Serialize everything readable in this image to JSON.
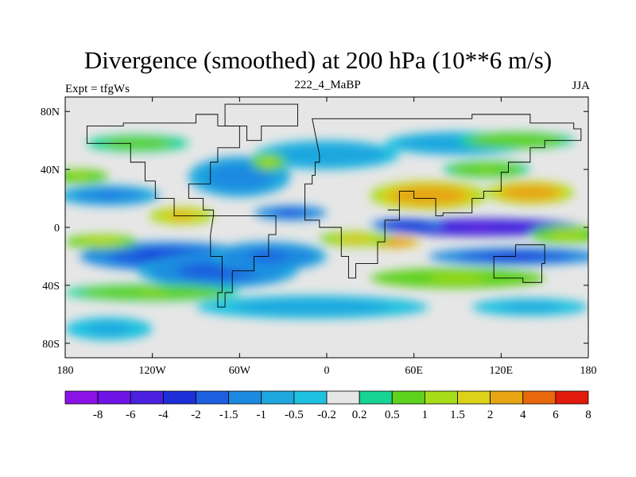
{
  "chart_data": {
    "type": "heatmap",
    "title": "Divergence (smoothed) at 200 hPa (10**6 m/s)",
    "left_label": "Expt = tfgWs",
    "center_label": "222_4_MaBP",
    "right_label": "JJA",
    "x_ticks": [
      {
        "value": -180,
        "label": "180"
      },
      {
        "value": -120,
        "label": "120W"
      },
      {
        "value": -60,
        "label": "60W"
      },
      {
        "value": 0,
        "label": "0"
      },
      {
        "value": 60,
        "label": "60E"
      },
      {
        "value": 120,
        "label": "120E"
      },
      {
        "value": 180,
        "label": "180"
      }
    ],
    "y_ticks": [
      {
        "value": 80,
        "label": "80N"
      },
      {
        "value": 40,
        "label": "40N"
      },
      {
        "value": 0,
        "label": "0"
      },
      {
        "value": -40,
        "label": "40S"
      },
      {
        "value": -80,
        "label": "80S"
      }
    ],
    "xlim": [
      -180,
      180
    ],
    "ylim": [
      -90,
      90
    ],
    "legend_labels": [
      "-8",
      "-6",
      "-4",
      "-2",
      "-1.5",
      "-1",
      "-0.5",
      "-0.2",
      "0.2",
      "0.5",
      "1",
      "1.5",
      "2",
      "4",
      "6",
      "8"
    ],
    "legend_colors": [
      "#8a12e6",
      "#6f14e6",
      "#4b20e0",
      "#1e2fd8",
      "#1d5fe0",
      "#1b8ae0",
      "#1fa7df",
      "#1fc1e0",
      "#e6e6e6",
      "#18d494",
      "#5ed21c",
      "#a7dc19",
      "#dcd21a",
      "#e7a612",
      "#e8680c",
      "#e21a0b"
    ],
    "blobs": [
      {
        "lon": -110,
        "lat": -20,
        "rlon": 60,
        "rlat": 10,
        "value": -2.4
      },
      {
        "lon": -75,
        "lat": -30,
        "rlon": 55,
        "rlat": 12,
        "value": -2.0
      },
      {
        "lon": -40,
        "lat": -20,
        "rlon": 40,
        "rlat": 10,
        "value": -1.8
      },
      {
        "lon": 105,
        "lat": 0,
        "rlon": 70,
        "rlat": 6,
        "value": -6.5
      },
      {
        "lon": 55,
        "lat": 2,
        "rlon": 25,
        "rlat": 4,
        "value": -3.0
      },
      {
        "lon": -25,
        "lat": 10,
        "rlon": 25,
        "rlat": 5,
        "value": -2.2
      },
      {
        "lon": 130,
        "lat": -20,
        "rlon": 60,
        "rlat": 6,
        "value": -2.3
      },
      {
        "lon": -150,
        "lat": 22,
        "rlon": 35,
        "rlat": 7,
        "value": -1.6
      },
      {
        "lon": -60,
        "lat": 35,
        "rlon": 35,
        "rlat": 14,
        "value": -1.5
      },
      {
        "lon": 0,
        "lat": 50,
        "rlon": 50,
        "rlat": 10,
        "value": -1.0
      },
      {
        "lon": 90,
        "lat": 58,
        "rlon": 50,
        "rlat": 8,
        "value": -1.0
      },
      {
        "lon": -10,
        "lat": -55,
        "rlon": 80,
        "rlat": 8,
        "value": -0.8
      },
      {
        "lon": -150,
        "lat": -70,
        "rlon": 30,
        "rlat": 8,
        "value": -0.7
      },
      {
        "lon": 140,
        "lat": -55,
        "rlon": 40,
        "rlat": 6,
        "value": -0.7
      },
      {
        "lon": 70,
        "lat": 22,
        "rlon": 40,
        "rlat": 10,
        "value": 3.2
      },
      {
        "lon": 140,
        "lat": 24,
        "rlon": 30,
        "rlat": 8,
        "value": 3.0
      },
      {
        "lon": 45,
        "lat": -10,
        "rlon": 20,
        "rlat": 4,
        "value": 4.2
      },
      {
        "lon": -100,
        "lat": 8,
        "rlon": 22,
        "rlat": 6,
        "value": 2.4
      },
      {
        "lon": -155,
        "lat": -10,
        "rlon": 25,
        "rlat": 5,
        "value": 1.6
      },
      {
        "lon": 20,
        "lat": -8,
        "rlon": 25,
        "rlat": 5,
        "value": 2.0
      },
      {
        "lon": -120,
        "lat": -45,
        "rlon": 60,
        "rlat": 6,
        "value": 1.0
      },
      {
        "lon": 90,
        "lat": -35,
        "rlon": 60,
        "rlat": 7,
        "value": 1.2
      },
      {
        "lon": -130,
        "lat": 58,
        "rlon": 35,
        "rlat": 6,
        "value": 0.8
      },
      {
        "lon": 130,
        "lat": 60,
        "rlon": 40,
        "rlat": 6,
        "value": 0.9
      },
      {
        "lon": -170,
        "lat": 35,
        "rlon": 20,
        "rlat": 5,
        "value": 1.2
      },
      {
        "lon": 165,
        "lat": -5,
        "rlon": 25,
        "rlat": 6,
        "value": 1.3
      },
      {
        "lon": -40,
        "lat": 45,
        "rlon": 12,
        "rlat": 6,
        "value": 1.4
      },
      {
        "lon": 110,
        "lat": 40,
        "rlon": 30,
        "rlat": 6,
        "value": 1.0
      }
    ]
  }
}
